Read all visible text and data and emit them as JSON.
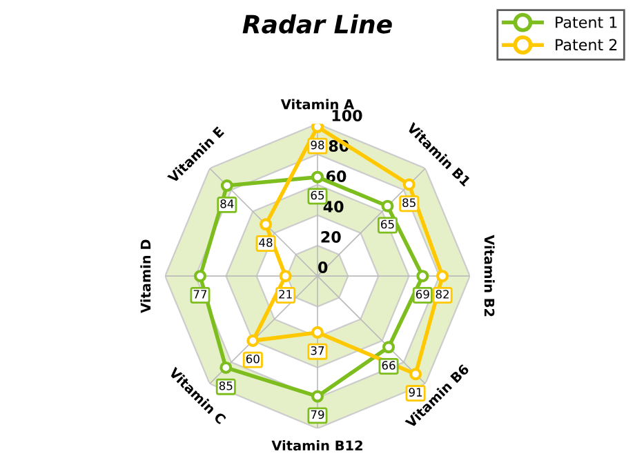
{
  "chart_data": {
    "type": "radar",
    "title": "Radar Line",
    "categories": [
      "Vitamin A",
      "Vitamin B1",
      "Vitamin B2",
      "Vitamin B6",
      "Vitamin B12",
      "Vitamin C",
      "Vitamin D",
      "Vitamin E"
    ],
    "series": [
      {
        "name": "Patent 1",
        "color": "#7dbe1e",
        "values": [
          65,
          65,
          69,
          66,
          79,
          85,
          77,
          84
        ]
      },
      {
        "name": "Patent 2",
        "color": "#ffc800",
        "values": [
          98,
          85,
          82,
          91,
          37,
          60,
          21,
          48
        ]
      }
    ],
    "ylim": [
      0,
      100
    ],
    "yticks": [
      0,
      20,
      40,
      60,
      80,
      100
    ],
    "grid": true,
    "legend": "top right",
    "marker": "circle",
    "line_style": "solid",
    "data_labels": true
  }
}
